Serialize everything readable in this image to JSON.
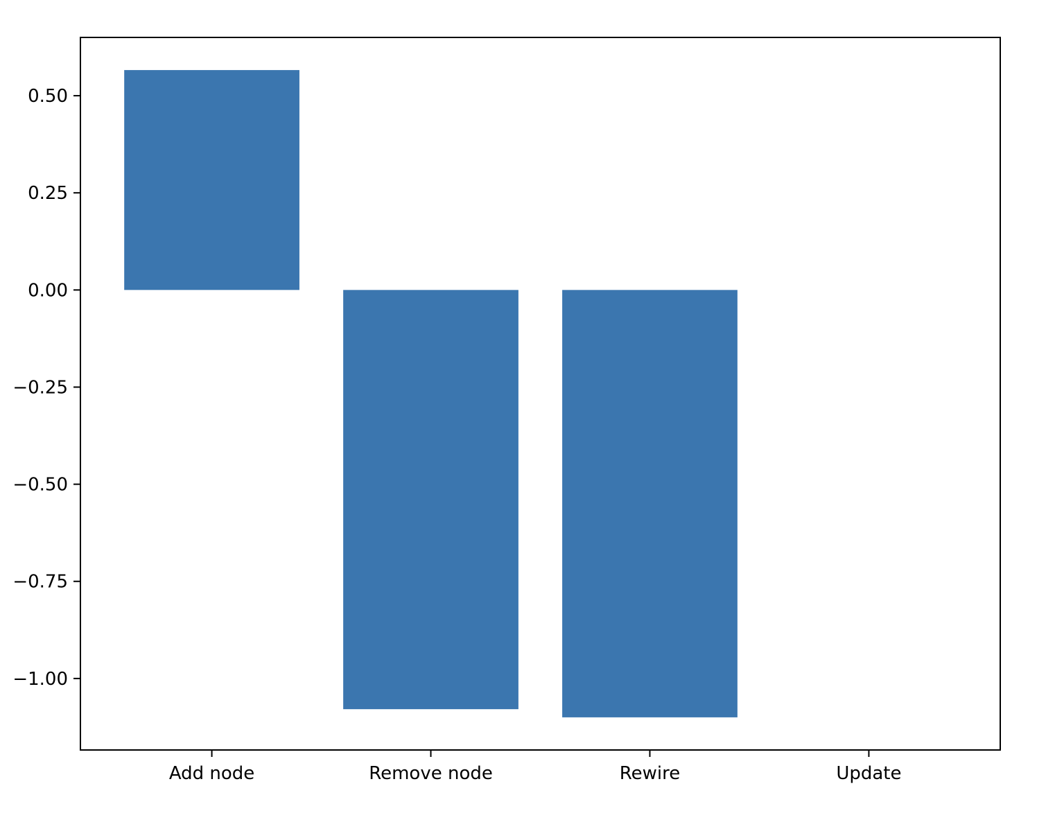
{
  "chart_data": {
    "type": "bar",
    "categories": [
      "Add node",
      "Remove node",
      "Rewire",
      "Update"
    ],
    "values": [
      0.566,
      -1.079,
      -1.1,
      0.0
    ],
    "title": "",
    "xlabel": "",
    "ylabel": "",
    "ylim": [
      -1.184,
      0.65
    ],
    "yticks": [
      0.5,
      0.25,
      0.0,
      -0.25,
      -0.5,
      -0.75,
      -1.0
    ],
    "ytick_labels": [
      "0.50",
      "0.25",
      "0.00",
      "−0.25",
      "−0.50",
      "−0.75",
      "−1.00"
    ],
    "grid": false,
    "bar_color": "#3b76af"
  }
}
